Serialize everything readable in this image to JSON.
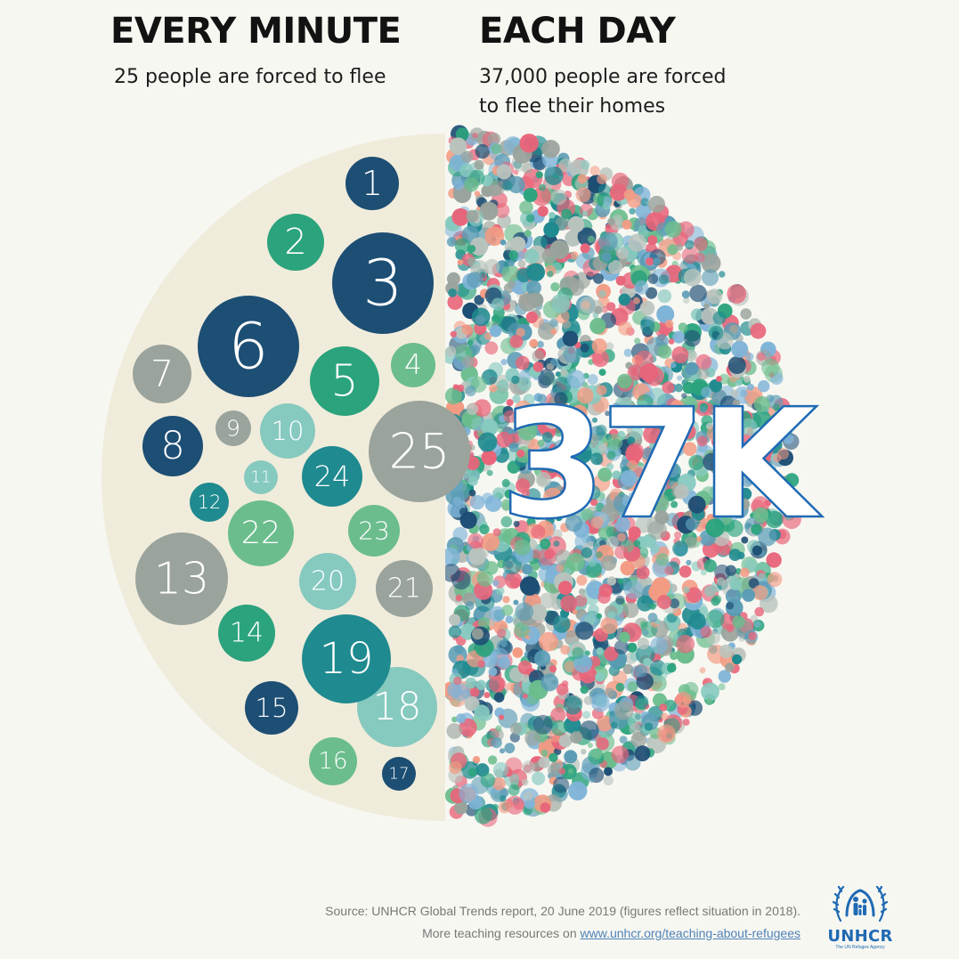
{
  "left": {
    "heading": "EVERY MINUTE",
    "subtext": "25 people are forced to flee",
    "count": 25
  },
  "right": {
    "heading": "EACH DAY",
    "subtext_line1": "37,000 people are forced",
    "subtext_line2": "to flee their homes",
    "big_number": "37K"
  },
  "footer": {
    "source": "Source: UNHCR Global Trends report, 20 June 2019 (figures reflect situation in 2018).",
    "teaching_prefix": "More teaching resources on",
    "teaching_link": "www.unhcr.org/teaching-about-refugees"
  },
  "logo": {
    "wordmark": "UNHCR",
    "tagline": "The UN Refugee Agency"
  },
  "colors": {
    "background": "#f7f7f2",
    "half_disc": "#f0ecdb",
    "dark_blue": "#1d4e74",
    "teal": "#1f8a8f",
    "green": "#2ba37d",
    "light_green": "#6bbd8d",
    "light_teal": "#86c9bf",
    "grey": "#9aa39c",
    "salmon": "#f39b83",
    "pink": "#e8657a",
    "sky": "#7fb4d8",
    "brand_blue": "#1f6ab3"
  },
  "bubbles": [
    {
      "label": "1",
      "color": "dark_blue"
    },
    {
      "label": "2",
      "color": "green"
    },
    {
      "label": "3",
      "color": "dark_blue"
    },
    {
      "label": "4",
      "color": "light_green"
    },
    {
      "label": "5",
      "color": "green"
    },
    {
      "label": "6",
      "color": "dark_blue"
    },
    {
      "label": "7",
      "color": "grey"
    },
    {
      "label": "8",
      "color": "dark_blue"
    },
    {
      "label": "9",
      "color": "grey"
    },
    {
      "label": "10",
      "color": "light_teal"
    },
    {
      "label": "11",
      "color": "light_teal"
    },
    {
      "label": "12",
      "color": "teal"
    },
    {
      "label": "13",
      "color": "grey"
    },
    {
      "label": "14",
      "color": "green"
    },
    {
      "label": "15",
      "color": "dark_blue"
    },
    {
      "label": "16",
      "color": "light_green"
    },
    {
      "label": "17",
      "color": "dark_blue"
    },
    {
      "label": "18",
      "color": "light_teal"
    },
    {
      "label": "19",
      "color": "teal"
    },
    {
      "label": "20",
      "color": "light_teal"
    },
    {
      "label": "21",
      "color": "grey"
    },
    {
      "label": "22",
      "color": "light_green"
    },
    {
      "label": "23",
      "color": "light_green"
    },
    {
      "label": "24",
      "color": "teal"
    },
    {
      "label": "25",
      "color": "grey"
    }
  ]
}
